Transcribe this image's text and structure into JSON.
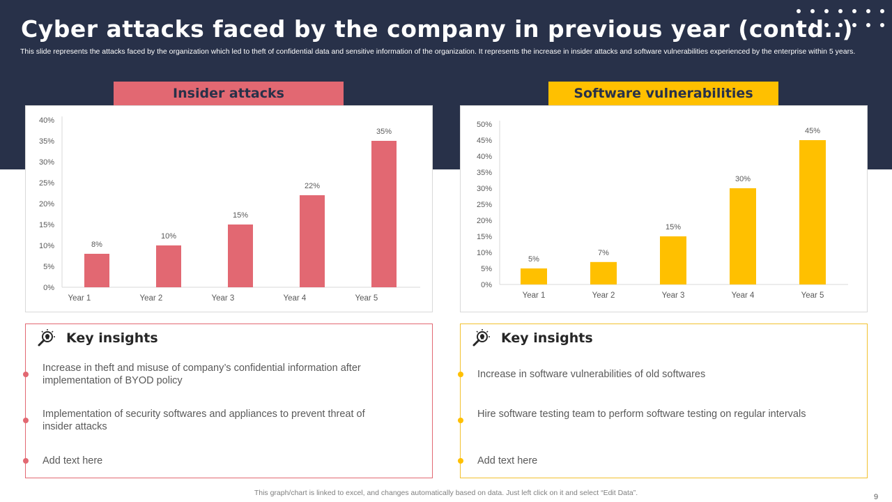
{
  "slide": {
    "title": "Cyber attacks faced by the company in previous year (contd..)",
    "subtitle": "This slide represents the attacks faced by the organization which led to theft of confidential data and sensitive information of the organization. It represents the increase in insider attacks and software vulnerabilities experienced by the enterprise within 5 years.",
    "footnote": "This graph/chart is linked to excel,  and changes automatically based on data. Just left click on it and select “Edit Data”.",
    "page_number": "9"
  },
  "colors": {
    "header_bg": "#283149",
    "red": "#e26872",
    "yellow": "#ffc000"
  },
  "left_panel": {
    "label": "Insider attacks",
    "insights_title": "Key insights",
    "insights_icon": "lightbulb-magnifier-icon",
    "bullets": [
      "Increase in theft and misuse of company’s confidential information after implementation of BYOD policy",
      "Implementation of security softwares and appliances to prevent threat of insider attacks",
      "Add text here"
    ]
  },
  "right_panel": {
    "label": "Software  vulnerabilities",
    "insights_title": "Key insights",
    "insights_icon": "lightbulb-magnifier-icon",
    "bullets": [
      "Increase in software vulnerabilities of old softwares",
      "Hire software testing team to perform software testing on regular intervals",
      "Add text here"
    ]
  },
  "chart_data": [
    {
      "type": "bar",
      "title": "Insider attacks",
      "categories": [
        "Year 1",
        "Year 2",
        "Year 3",
        "Year 4",
        "Year 5"
      ],
      "values": [
        8,
        10,
        15,
        22,
        35
      ],
      "value_labels": [
        "8%",
        "10%",
        "15%",
        "22%",
        "35%"
      ],
      "ylim": [
        0,
        40
      ],
      "yticks": [
        0,
        5,
        10,
        15,
        20,
        25,
        30,
        35,
        40
      ],
      "ytick_labels": [
        "0%",
        "5%",
        "10%",
        "15%",
        "20%",
        "25%",
        "30%",
        "35%",
        "40%"
      ],
      "color": "#e26872",
      "xlabel": "",
      "ylabel": "",
      "grid": false
    },
    {
      "type": "bar",
      "title": "Software  vulnerabilities",
      "categories": [
        "Year 1",
        "Year 2",
        "Year 3",
        "Year 4",
        "Year 5"
      ],
      "values": [
        5,
        7,
        15,
        30,
        45
      ],
      "value_labels": [
        "5%",
        "7%",
        "15%",
        "30%",
        "45%"
      ],
      "ylim": [
        0,
        50
      ],
      "yticks": [
        0,
        5,
        10,
        15,
        20,
        25,
        30,
        35,
        40,
        45,
        50
      ],
      "ytick_labels": [
        "0%",
        "5%",
        "10%",
        "15%",
        "20%",
        "25%",
        "30%",
        "35%",
        "40%",
        "45%",
        "50%"
      ],
      "color": "#ffc000",
      "xlabel": "",
      "ylabel": "",
      "grid": false
    }
  ]
}
